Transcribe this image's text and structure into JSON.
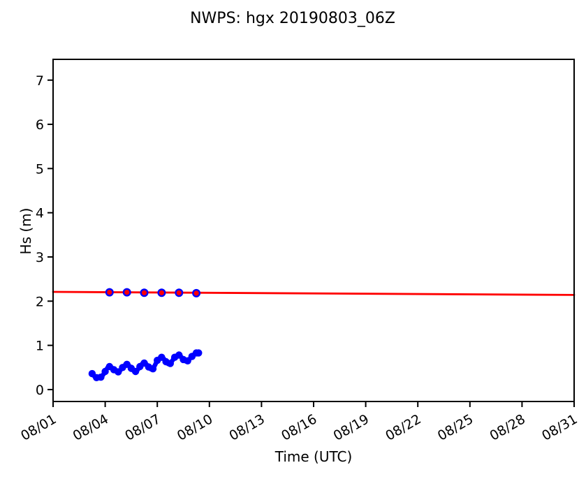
{
  "chart_data": {
    "type": "line",
    "title": "NWPS: hgx 20190803_06Z",
    "xlabel": "Time (UTC)",
    "ylabel": "Hs (m)",
    "grid": false,
    "legend": "none",
    "xlim_days": [
      0,
      30
    ],
    "ylim": [
      -0.27,
      7.47
    ],
    "x_ticks": [
      {
        "day": 0,
        "label": "08/01"
      },
      {
        "day": 3,
        "label": "08/04"
      },
      {
        "day": 6,
        "label": "08/07"
      },
      {
        "day": 9,
        "label": "08/10"
      },
      {
        "day": 12,
        "label": "08/13"
      },
      {
        "day": 15,
        "label": "08/16"
      },
      {
        "day": 18,
        "label": "08/19"
      },
      {
        "day": 21,
        "label": "08/22"
      },
      {
        "day": 24,
        "label": "08/25"
      },
      {
        "day": 27,
        "label": "08/28"
      },
      {
        "day": 30,
        "label": "08/31"
      }
    ],
    "y_ticks": [
      0,
      1,
      2,
      3,
      4,
      5,
      6,
      7
    ],
    "colors": {
      "forecast_red": "#ff0000",
      "observation_blue": "#0000ff"
    },
    "series": [
      {
        "name": "forecast-line",
        "style": "line",
        "color": "#ff0000",
        "line_width": 2.8,
        "x_days": [
          0,
          30
        ],
        "hs_m": [
          2.21,
          2.14
        ]
      },
      {
        "name": "observed-line",
        "style": "line-markers",
        "color": "#0000ff",
        "line_width": 6.5,
        "marker_radius": 5.2,
        "marker_every": 2,
        "x_days": [
          2.25,
          2.375,
          2.5,
          2.625,
          2.75,
          2.875,
          3.0,
          3.125,
          3.25,
          3.375,
          3.5,
          3.625,
          3.75,
          3.875,
          4.0,
          4.125,
          4.25,
          4.375,
          4.5,
          4.625,
          4.75,
          4.875,
          5.0,
          5.125,
          5.25,
          5.375,
          5.5,
          5.625,
          5.75,
          5.875,
          6.0,
          6.125,
          6.25,
          6.375,
          6.5,
          6.625,
          6.75,
          6.875,
          7.0,
          7.125,
          7.25,
          7.375,
          7.5,
          7.625,
          7.75,
          7.875,
          8.0,
          8.125,
          8.25,
          8.375
        ],
        "hs_m": [
          0.36,
          0.3,
          0.27,
          0.26,
          0.28,
          0.33,
          0.41,
          0.49,
          0.52,
          0.5,
          0.45,
          0.41,
          0.4,
          0.44,
          0.5,
          0.55,
          0.57,
          0.54,
          0.48,
          0.43,
          0.41,
          0.45,
          0.52,
          0.58,
          0.6,
          0.57,
          0.51,
          0.46,
          0.47,
          0.56,
          0.66,
          0.71,
          0.73,
          0.7,
          0.63,
          0.58,
          0.59,
          0.66,
          0.73,
          0.77,
          0.78,
          0.74,
          0.68,
          0.64,
          0.65,
          0.7,
          0.75,
          0.8,
          0.83,
          0.83
        ]
      },
      {
        "name": "daily-06z-points",
        "style": "markers",
        "fill": "#ff0000",
        "edge": "#0000ff",
        "edge_width": 2.4,
        "marker_radius": 4.8,
        "x_days": [
          3.25,
          4.25,
          5.25,
          6.25,
          7.25,
          8.25
        ],
        "hs_m": [
          2.2,
          2.2,
          2.19,
          2.19,
          2.19,
          2.18
        ]
      }
    ]
  }
}
